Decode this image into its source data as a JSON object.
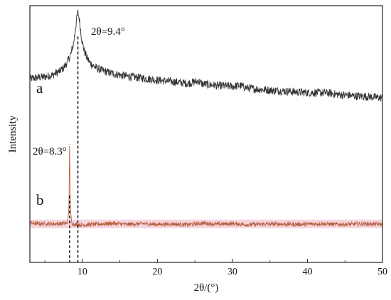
{
  "chart_data": {
    "type": "line",
    "xlabel": "2θ/(°)",
    "ylabel": "Intensity",
    "xlim": [
      3,
      50
    ],
    "ylim": [
      0,
      100
    ],
    "x_ticks": [
      10,
      20,
      30,
      40,
      50
    ],
    "y_ticks": [],
    "grid": false,
    "legend": "none",
    "series": [
      {
        "name": "a",
        "color": "#333333",
        "x": [
          3,
          4,
          5,
          6,
          7,
          7.5,
          8,
          8.5,
          8.8,
          9.0,
          9.2,
          9.4,
          9.6,
          9.8,
          10.0,
          10.3,
          10.6,
          11,
          11.5,
          12,
          13,
          14,
          15,
          16,
          18,
          20,
          22,
          24,
          25.5,
          26,
          28,
          30,
          31,
          32,
          34,
          36,
          38,
          40,
          42,
          43,
          44,
          46,
          48,
          50
        ],
        "y": [
          71.5,
          72.0,
          72.3,
          73.0,
          74.5,
          75.8,
          78.0,
          81.5,
          85.0,
          89.0,
          94.0,
          97.5,
          94.5,
          89.5,
          85.5,
          82.0,
          79.8,
          77.8,
          76.5,
          75.5,
          74.4,
          73.6,
          73.0,
          72.5,
          71.8,
          71.0,
          70.4,
          69.7,
          70.6,
          69.5,
          68.9,
          68.5,
          68.9,
          67.9,
          67.3,
          66.9,
          66.5,
          66.1,
          66.1,
          65.9,
          65.4,
          64.9,
          64.6,
          64.1
        ]
      },
      {
        "name": "b",
        "color": "#b5603c",
        "x": [
          3,
          5,
          7,
          8.0,
          8.2,
          8.3,
          8.4,
          8.6,
          9,
          10,
          12,
          14,
          16,
          18,
          20,
          22,
          24,
          26,
          28,
          30,
          32,
          34,
          36,
          38,
          40,
          42,
          44,
          46,
          48,
          50
        ],
        "y": [
          15.3,
          15.0,
          15.1,
          15.2,
          20.0,
          46.0,
          20.0,
          15.2,
          14.8,
          14.6,
          14.9,
          15.2,
          14.8,
          15.1,
          14.8,
          15.0,
          14.6,
          15.3,
          14.9,
          15.1,
          14.7,
          14.9,
          15.0,
          14.8,
          14.9,
          15.1,
          14.8,
          14.9,
          15.0,
          14.8
        ]
      }
    ],
    "annotations": [
      {
        "text": "2θ=9.4°",
        "x": 9.4
      },
      {
        "text": "2θ=8.3°",
        "x": 8.3
      }
    ],
    "series_labels": [
      "a",
      "b"
    ]
  }
}
